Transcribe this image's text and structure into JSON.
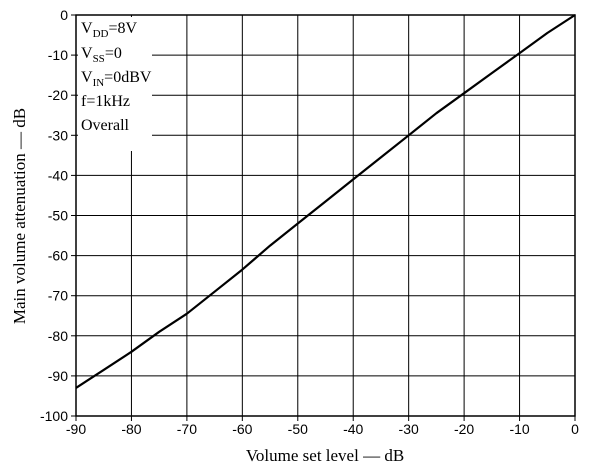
{
  "chart_data": {
    "type": "line",
    "xlabel": "Volume set level — dB",
    "ylabel": "Main volume attenuation — dB",
    "xlim": [
      -90,
      0
    ],
    "ylim": [
      -100,
      0
    ],
    "grid": true,
    "x_ticks": [
      "-90",
      "-80",
      "-70",
      "-60",
      "-50",
      "-40",
      "-30",
      "-20",
      "-10",
      "0"
    ],
    "y_ticks": [
      "0",
      "-10",
      "-20",
      "-30",
      "-40",
      "-50",
      "-60",
      "-70",
      "-80",
      "-90",
      "-100"
    ],
    "conditions": {
      "vdd": {
        "main": "V",
        "sub": "DD",
        "value": "=8V"
      },
      "vss": {
        "main": "V",
        "sub": "SS",
        "value": "=0"
      },
      "vin": {
        "main": "V",
        "sub": "IN",
        "value": "=0dBV"
      },
      "freq": "f=1kHz",
      "mode": "Overall"
    },
    "series": [
      {
        "x": [
          -90,
          -85,
          -80,
          -75,
          -70,
          -65,
          -60,
          -55,
          -50,
          -45,
          -40,
          -35,
          -30,
          -25,
          -20,
          -15,
          -10,
          -5,
          0
        ],
        "y": [
          -93,
          -88.5,
          -84,
          -79,
          -74.5,
          -69,
          -63.5,
          -57.5,
          -52,
          -46.5,
          -41,
          -35.5,
          -30,
          -24.5,
          -19.5,
          -14.5,
          -9.5,
          -4.5,
          0
        ]
      }
    ],
    "line_color": "#000000"
  }
}
